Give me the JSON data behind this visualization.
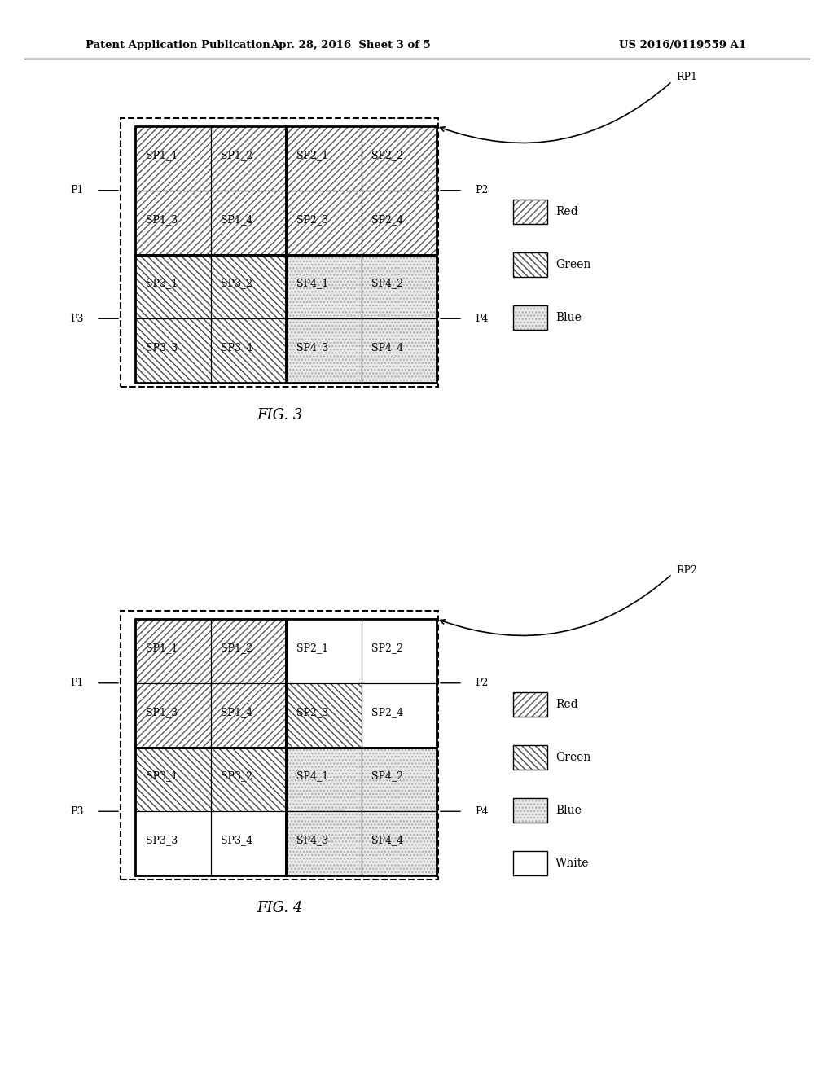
{
  "header_left": "Patent Application Publication",
  "header_mid": "Apr. 28, 2016  Sheet 3 of 5",
  "header_right": "US 2016/0119559 A1",
  "fig3": {
    "label": "FIG. 3",
    "rp_label": "RP1",
    "cell_labels": [
      [
        "SP1_1",
        "SP1_2",
        "SP2_1",
        "SP2_2"
      ],
      [
        "SP1_3",
        "SP1_4",
        "SP2_3",
        "SP2_4"
      ],
      [
        "SP3_1",
        "SP3_2",
        "SP4_1",
        "SP4_2"
      ],
      [
        "SP3_3",
        "SP3_4",
        "SP4_3",
        "SP4_4"
      ]
    ],
    "cell_patterns": [
      [
        "red",
        "red",
        "red",
        "red"
      ],
      [
        "red",
        "red",
        "red",
        "red"
      ],
      [
        "green",
        "green",
        "blue",
        "blue"
      ],
      [
        "green",
        "green",
        "blue",
        "blue"
      ]
    ],
    "legend_items": [
      "Red",
      "Green",
      "Blue"
    ]
  },
  "fig4": {
    "label": "FIG. 4",
    "rp_label": "RP2",
    "cell_labels": [
      [
        "SP1_1",
        "SP1_2",
        "SP2_1",
        "SP2_2"
      ],
      [
        "SP1_3",
        "SP1_4",
        "SP2_3",
        "SP2_4"
      ],
      [
        "SP3_1",
        "SP3_2",
        "SP4_1",
        "SP4_2"
      ],
      [
        "SP3_3",
        "SP3_4",
        "SP4_3",
        "SP4_4"
      ]
    ],
    "cell_patterns": [
      [
        "red",
        "red",
        "white_plain",
        "white_plain"
      ],
      [
        "red",
        "red",
        "green",
        "white_plain"
      ],
      [
        "green",
        "green",
        "blue",
        "blue"
      ],
      [
        "white_plain",
        "white_plain",
        "blue",
        "blue"
      ]
    ],
    "legend_items": [
      "Red",
      "Green",
      "Blue",
      "White"
    ]
  },
  "background_color": "#ffffff"
}
